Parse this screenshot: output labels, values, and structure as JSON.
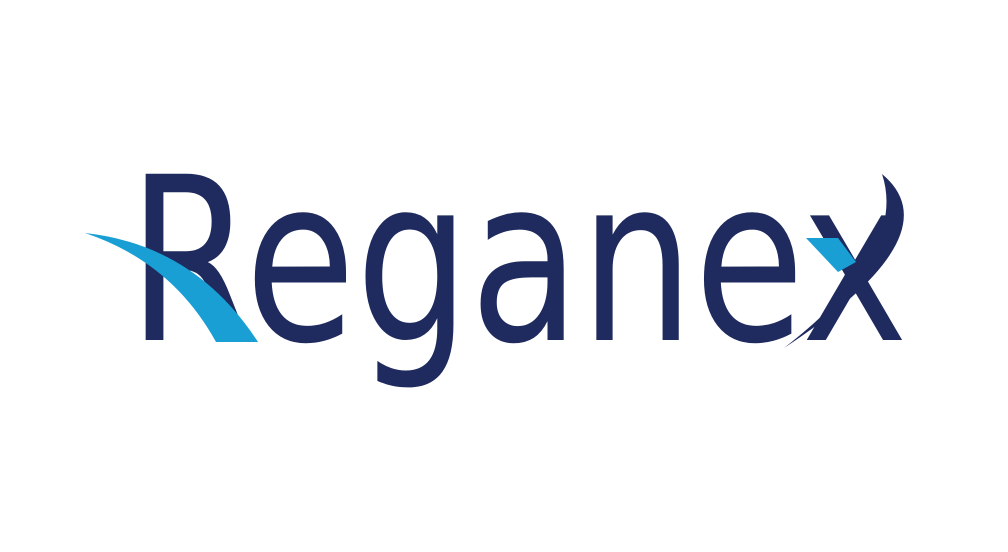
{
  "logo": {
    "text": "Reganex"
  }
}
